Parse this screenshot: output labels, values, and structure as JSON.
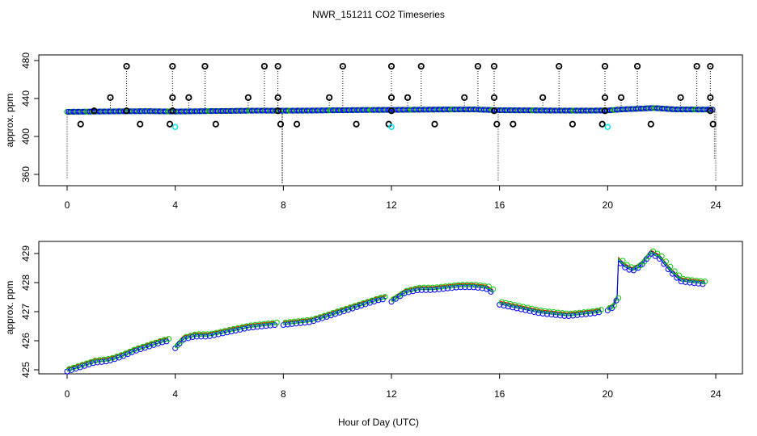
{
  "title": "NWR_151211  CO2 Timeseries",
  "xlabel": "Hour of Day (UTC)",
  "colors": {
    "low_ppm_marker": "#00e5ee",
    "raw_outlier_marker": "#000000",
    "raw_series": "#0000ff",
    "raw_alt": "#00aa00",
    "smooth_a": "#ff0000",
    "smooth_b": "#00cc00",
    "smooth_c": "#0000ff"
  },
  "chart_data": [
    {
      "type": "scatter",
      "name": "raw",
      "ylabel": "approx. ppm",
      "xlim": [
        0,
        24
      ],
      "ylim": [
        350,
        485
      ],
      "xticks": [
        0,
        4,
        8,
        12,
        16,
        20,
        24
      ],
      "yticks": [
        360,
        400,
        440,
        480
      ],
      "baseline": [
        [
          0,
          426
        ],
        [
          1,
          426.2
        ],
        [
          2,
          426.5
        ],
        [
          3,
          426.6
        ],
        [
          4,
          426.3
        ],
        [
          5,
          426.6
        ],
        [
          6,
          426.9
        ],
        [
          7,
          427.2
        ],
        [
          8,
          427.1
        ],
        [
          9,
          427.3
        ],
        [
          10,
          427.6
        ],
        [
          11,
          427.9
        ],
        [
          12,
          428.0
        ],
        [
          13,
          428.2
        ],
        [
          14,
          428.4
        ],
        [
          15,
          428.5
        ],
        [
          16,
          427.6
        ],
        [
          17,
          427.5
        ],
        [
          18,
          427.3
        ],
        [
          19,
          427.2
        ],
        [
          20,
          427.4
        ],
        [
          20.5,
          428.5
        ],
        [
          21,
          429.0
        ],
        [
          21.7,
          430.0
        ],
        [
          22.5,
          428.5
        ],
        [
          23.8,
          428.3
        ]
      ],
      "high_points": [
        [
          2.2,
          474
        ],
        [
          3.9,
          474
        ],
        [
          3.9,
          441
        ],
        [
          5.1,
          474
        ],
        [
          7.3,
          474
        ],
        [
          7.8,
          474
        ],
        [
          7.8,
          441
        ],
        [
          10.2,
          474
        ],
        [
          12.0,
          474
        ],
        [
          12.0,
          441
        ],
        [
          13.1,
          474
        ],
        [
          15.2,
          474
        ],
        [
          15.8,
          474
        ],
        [
          15.8,
          441
        ],
        [
          18.2,
          474
        ],
        [
          19.9,
          474
        ],
        [
          19.9,
          441
        ],
        [
          21.1,
          474
        ],
        [
          23.3,
          474
        ],
        [
          23.8,
          474
        ],
        [
          23.8,
          441
        ],
        [
          1.6,
          441
        ],
        [
          4.5,
          441
        ],
        [
          6.7,
          441
        ],
        [
          9.7,
          441
        ],
        [
          12.6,
          441
        ],
        [
          14.7,
          441
        ],
        [
          17.6,
          441
        ],
        [
          20.5,
          441
        ],
        [
          22.7,
          441
        ]
      ],
      "mid_points": [
        [
          1.0,
          427
        ],
        [
          2.2,
          427
        ],
        [
          3.9,
          427
        ],
        [
          7.8,
          427
        ],
        [
          12.0,
          427
        ],
        [
          15.8,
          427
        ],
        [
          19.9,
          427
        ],
        [
          23.8,
          427
        ]
      ],
      "low_points": [
        [
          0.5,
          413
        ],
        [
          2.7,
          413
        ],
        [
          3.8,
          413
        ],
        [
          5.5,
          413
        ],
        [
          7.9,
          413
        ],
        [
          8.5,
          413
        ],
        [
          10.7,
          413
        ],
        [
          11.9,
          413
        ],
        [
          13.6,
          413
        ],
        [
          15.9,
          413
        ],
        [
          16.5,
          413
        ],
        [
          18.7,
          413
        ],
        [
          19.8,
          413
        ],
        [
          21.6,
          413
        ],
        [
          23.9,
          413
        ]
      ],
      "cyan_points": [
        [
          4.0,
          410
        ],
        [
          12.0,
          410
        ],
        [
          20.0,
          410
        ]
      ],
      "spikes": [
        [
          0.0,
          426,
          356
        ],
        [
          7.95,
          426,
          350
        ],
        [
          7.97,
          426,
          350
        ],
        [
          15.95,
          426,
          352
        ],
        [
          23.95,
          426,
          376
        ],
        [
          24.0,
          426,
          352
        ]
      ]
    },
    {
      "type": "line",
      "name": "smoothed",
      "ylabel": "approx. ppm",
      "xlim": [
        0,
        24
      ],
      "ylim": [
        424.9,
        429.3
      ],
      "xticks": [
        0,
        4,
        8,
        12,
        16,
        20,
        24
      ],
      "yticks": [
        425,
        426,
        427,
        428,
        429
      ],
      "segments": [
        [
          [
            0,
            425.0
          ],
          [
            0.5,
            425.15
          ],
          [
            1,
            425.3
          ],
          [
            1.5,
            425.35
          ],
          [
            2,
            425.5
          ],
          [
            2.5,
            425.7
          ],
          [
            3,
            425.85
          ],
          [
            3.5,
            426.0
          ],
          [
            3.75,
            426.05
          ]
        ],
        [
          [
            4.0,
            425.8
          ],
          [
            4.3,
            426.1
          ],
          [
            4.7,
            426.2
          ],
          [
            5.2,
            426.2
          ],
          [
            5.7,
            426.3
          ],
          [
            6.2,
            426.4
          ],
          [
            6.7,
            426.5
          ],
          [
            7.2,
            426.55
          ],
          [
            7.7,
            426.6
          ]
        ],
        [
          [
            8.0,
            426.6
          ],
          [
            8.5,
            426.65
          ],
          [
            9,
            426.7
          ],
          [
            9.5,
            426.85
          ],
          [
            10,
            427.0
          ],
          [
            10.5,
            427.15
          ],
          [
            11,
            427.3
          ],
          [
            11.5,
            427.45
          ],
          [
            11.8,
            427.5
          ]
        ],
        [
          [
            12.0,
            427.4
          ],
          [
            12.5,
            427.7
          ],
          [
            13,
            427.8
          ],
          [
            13.5,
            427.8
          ],
          [
            14,
            427.85
          ],
          [
            14.5,
            427.9
          ],
          [
            15,
            427.9
          ],
          [
            15.5,
            427.85
          ],
          [
            15.75,
            427.7
          ]
        ],
        [
          [
            16.0,
            427.3
          ],
          [
            16.5,
            427.2
          ],
          [
            17,
            427.1
          ],
          [
            17.5,
            427.0
          ],
          [
            18,
            426.95
          ],
          [
            18.5,
            426.9
          ],
          [
            19,
            426.95
          ],
          [
            19.5,
            427.0
          ],
          [
            19.75,
            427.05
          ]
        ],
        [
          [
            20.0,
            427.1
          ],
          [
            20.2,
            427.2
          ],
          [
            20.35,
            427.5
          ],
          [
            20.4,
            428.8
          ],
          [
            20.6,
            428.6
          ],
          [
            20.9,
            428.45
          ],
          [
            21.2,
            428.6
          ],
          [
            21.6,
            429.05
          ],
          [
            21.9,
            428.9
          ],
          [
            22.3,
            428.45
          ],
          [
            22.7,
            428.1
          ],
          [
            23.1,
            428.05
          ],
          [
            23.6,
            428.0
          ]
        ]
      ]
    }
  ]
}
